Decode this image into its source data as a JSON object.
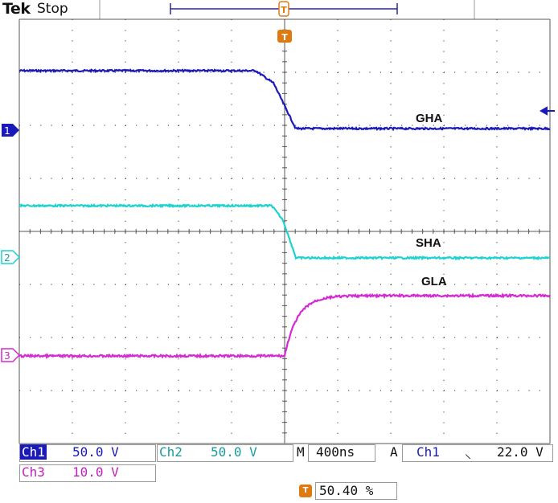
{
  "header": {
    "brand": "Tek",
    "run_state": "Stop"
  },
  "trace_labels": {
    "gha": "GHA",
    "sha": "SHA",
    "gla": "GLA"
  },
  "channels": {
    "ch1": {
      "marker": "1",
      "color": "#1a1ab8"
    },
    "ch2": {
      "marker": "2",
      "color": "#1ed2d2"
    },
    "ch3": {
      "marker": "3",
      "color": "#d42ad4"
    }
  },
  "status": {
    "ch1_label": "Ch1",
    "ch1_scale": "50.0 V",
    "ch2_label": "Ch2",
    "ch2_scale": "50.0 V",
    "ch3_label": "Ch3",
    "ch3_scale": "10.0 V",
    "m_label": "M",
    "timebase": "400ns",
    "a_label": "A",
    "trig_source": "Ch1",
    "trig_slope": "⸜",
    "trig_level": "22.0 V",
    "trig_pos": "50.40 %"
  },
  "colors": {
    "grid": "#5a5a5a",
    "trigger": "#e07a10"
  }
}
